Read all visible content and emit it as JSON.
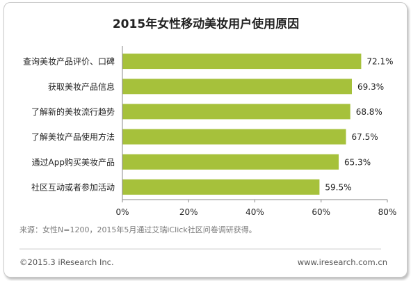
{
  "chart_data": {
    "type": "bar",
    "orientation": "horizontal",
    "title": "2015年女性移动美妆用户使用原因",
    "categories": [
      "查询美妆产品评价、口碑",
      "获取美妆产品信息",
      "了解新的美妆流行趋势",
      "了解美妆产品使用方法",
      "通过App购买美妆产品",
      "社区互动或者参加活动"
    ],
    "values": [
      72.1,
      69.3,
      68.8,
      67.5,
      65.3,
      59.5
    ],
    "value_labels": [
      "72.1%",
      "69.3%",
      "68.8%",
      "67.5%",
      "65.3%",
      "59.5%"
    ],
    "xlim": [
      0,
      80
    ],
    "xticks": [
      0,
      20,
      40,
      60,
      80
    ],
    "xtick_labels": [
      "0%",
      "20%",
      "40%",
      "60%",
      "80%"
    ],
    "grid": false,
    "bar_color": "#a6c13b"
  },
  "footnote": "来源：女性N=1200，2015年5月通过艾瑞iClick社区问卷调研获得。",
  "footer": {
    "copyright": "©2015.3 iResearch Inc.",
    "website": "www.iresearch.com.cn"
  },
  "colors": {
    "bar": "#a6c13b",
    "axis": "#888888",
    "divider": "#cfcfcf"
  }
}
